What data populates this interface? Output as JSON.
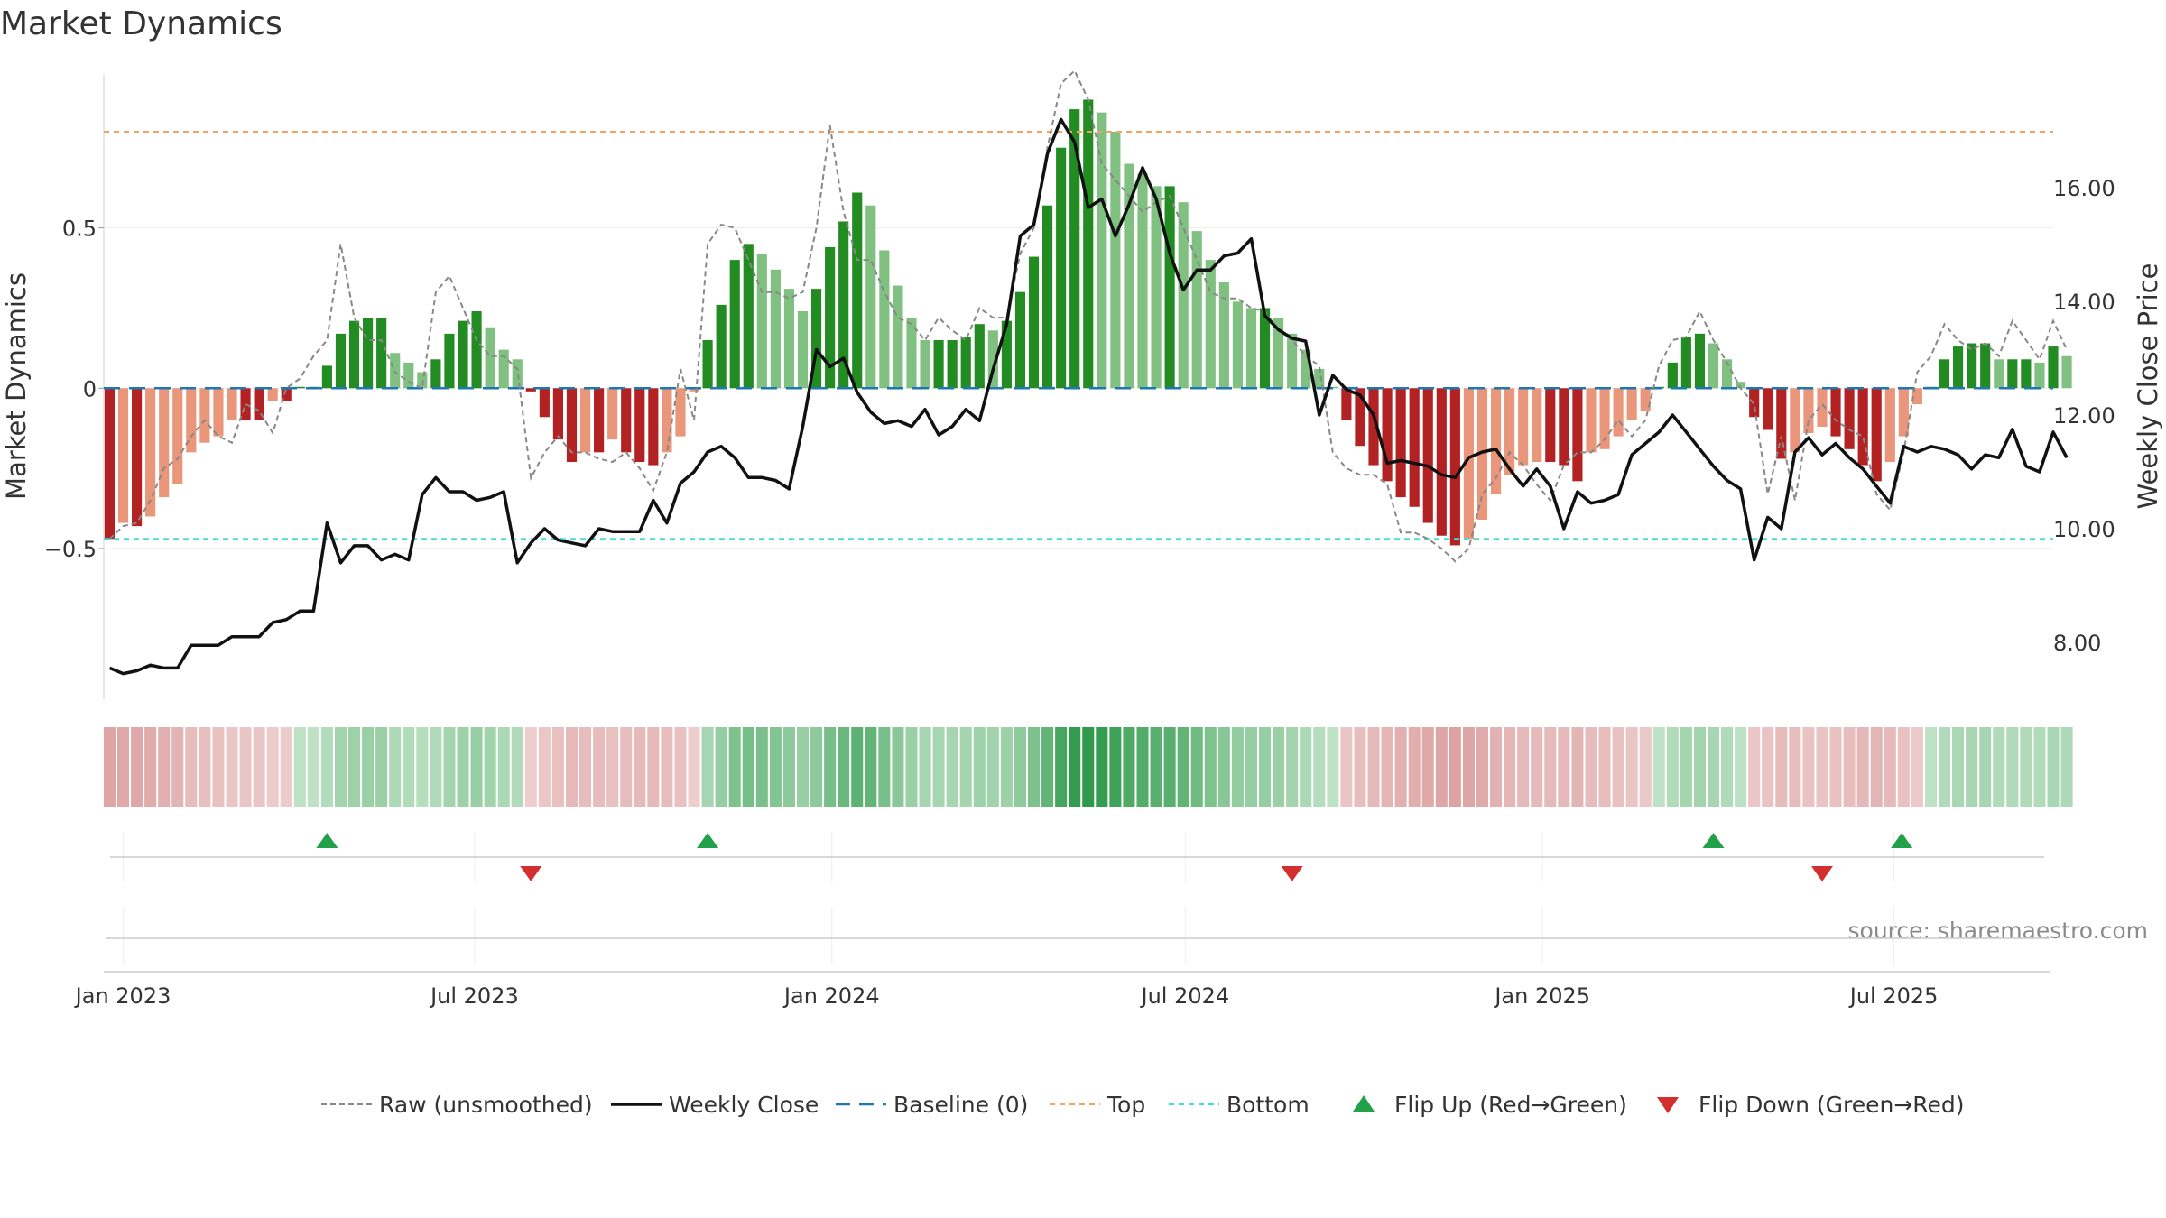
{
  "chart_data": {
    "type": "bar",
    "title": "Market Dynamics",
    "ylabel": "Market Dynamics",
    "ylabel_right": "Weekly Close Price",
    "ylim": [
      -0.97,
      0.98
    ],
    "ylim_right": [
      7.0,
      18.0
    ],
    "y_ticks": [
      -0.5,
      0,
      0.5
    ],
    "y_tick_labels": [
      "−0.5",
      "0",
      "0.5"
    ],
    "y_right_ticks": [
      8,
      10,
      12,
      14,
      16
    ],
    "y_right_tick_labels": [
      "8.00",
      "10.00",
      "12.00",
      "14.00",
      "16.00"
    ],
    "x_range": [
      "2022-12-22",
      "2025-09-21"
    ],
    "x_ticks": [
      {
        "date": "2023-01-01",
        "label": "Jan 2023"
      },
      {
        "date": "2023-07-01",
        "label": "Jul 2023"
      },
      {
        "date": "2024-01-01",
        "label": "Jan 2024"
      },
      {
        "date": "2024-07-01",
        "label": "Jul 2024"
      },
      {
        "date": "2025-01-01",
        "label": "Jan 2025"
      },
      {
        "date": "2025-07-01",
        "label": "Jul 2025"
      }
    ],
    "start_date": "2022-12-25",
    "interval_days": 7,
    "top_level": 0.8,
    "bottom_level": -0.47,
    "baseline": 0,
    "colors": {
      "strong_up": "#228b22",
      "weak_up": "#80c080",
      "strong_down": "#b22222",
      "weak_down": "#e9967a",
      "close": "#111111",
      "raw": "#888888",
      "baseline": "#1f77b4",
      "top": "#f4a460",
      "bottom": "#40e0d0",
      "flip_up": "#22a04a",
      "flip_down": "#d32f2f"
    },
    "series": [
      {
        "name": "Market Dynamics",
        "values": [
          -0.47,
          -0.42,
          -0.43,
          -0.4,
          -0.34,
          -0.3,
          -0.2,
          -0.17,
          -0.15,
          -0.1,
          -0.1,
          -0.1,
          -0.04,
          -0.04,
          0,
          0,
          0.07,
          0.17,
          0.21,
          0.22,
          0.22,
          0.11,
          0.08,
          0.05,
          0.09,
          0.17,
          0.21,
          0.24,
          0.19,
          0.12,
          0.09,
          -0.01,
          -0.09,
          -0.16,
          -0.23,
          -0.2,
          -0.2,
          -0.16,
          -0.2,
          -0.23,
          -0.24,
          -0.2,
          -0.15,
          -0.01,
          0.15,
          0.26,
          0.4,
          0.45,
          0.42,
          0.37,
          0.31,
          0.24,
          0.31,
          0.44,
          0.52,
          0.61,
          0.57,
          0.43,
          0.32,
          0.22,
          0.15,
          0.15,
          0.15,
          0.16,
          0.2,
          0.18,
          0.21,
          0.3,
          0.41,
          0.57,
          0.75,
          0.87,
          0.9,
          0.86,
          0.8,
          0.7,
          0.67,
          0.63,
          0.63,
          0.58,
          0.49,
          0.4,
          0.33,
          0.27,
          0.25,
          0.25,
          0.22,
          0.17,
          0.12,
          0.06,
          0,
          -0.1,
          -0.18,
          -0.24,
          -0.29,
          -0.34,
          -0.37,
          -0.42,
          -0.46,
          -0.49,
          -0.47,
          -0.41,
          -0.33,
          -0.27,
          -0.24,
          -0.23,
          -0.23,
          -0.24,
          -0.29,
          -0.2,
          -0.19,
          -0.15,
          -0.1,
          -0.07,
          0,
          0.08,
          0.16,
          0.17,
          0.14,
          0.09,
          0.02,
          -0.09,
          -0.13,
          -0.22,
          -0.2,
          -0.14,
          -0.12,
          -0.15,
          -0.19,
          -0.24,
          -0.29,
          -0.23,
          -0.15,
          -0.05,
          0,
          0.09,
          0.13,
          0.14,
          0.14,
          0.09,
          0.09,
          0.09,
          0.08,
          0.13,
          0.1
        ]
      },
      {
        "name": "Raw (unsmoothed)",
        "values": [
          -0.47,
          -0.43,
          -0.42,
          -0.35,
          -0.25,
          -0.22,
          -0.15,
          -0.1,
          -0.15,
          -0.17,
          -0.05,
          -0.07,
          -0.14,
          0,
          0.03,
          0.1,
          0.15,
          0.45,
          0.22,
          0.15,
          0.15,
          0.05,
          0.02,
          0,
          0.3,
          0.35,
          0.25,
          0.15,
          0.1,
          0.1,
          0.06,
          -0.28,
          -0.2,
          -0.15,
          -0.2,
          -0.2,
          -0.22,
          -0.23,
          -0.2,
          -0.25,
          -0.32,
          -0.2,
          0.06,
          -0.1,
          0.45,
          0.51,
          0.5,
          0.4,
          0.3,
          0.3,
          0.28,
          0.3,
          0.5,
          0.82,
          0.55,
          0.4,
          0.4,
          0.3,
          0.22,
          0.2,
          0.15,
          0.22,
          0.18,
          0.15,
          0.25,
          0.22,
          0.22,
          0.42,
          0.5,
          0.75,
          0.95,
          0.99,
          0.9,
          0.7,
          0.65,
          0.6,
          0.55,
          0.58,
          0.6,
          0.5,
          0.4,
          0.3,
          0.28,
          0.28,
          0.25,
          0.24,
          0.18,
          0.15,
          0.1,
          0.07,
          -0.2,
          -0.25,
          -0.27,
          -0.27,
          -0.3,
          -0.45,
          -0.45,
          -0.47,
          -0.5,
          -0.54,
          -0.5,
          -0.33,
          -0.28,
          -0.2,
          -0.24,
          -0.3,
          -0.35,
          -0.24,
          -0.2,
          -0.2,
          -0.16,
          -0.1,
          -0.15,
          -0.1,
          0.07,
          0.15,
          0.16,
          0.24,
          0.15,
          0.08,
          0,
          -0.05,
          -0.33,
          -0.15,
          -0.35,
          -0.1,
          -0.05,
          -0.1,
          -0.13,
          -0.15,
          -0.33,
          -0.38,
          -0.2,
          0.05,
          0.1,
          0.2,
          0.15,
          0.12,
          0.14,
          0.1,
          0.21,
          0.15,
          0.09,
          0.21,
          0.12
        ]
      },
      {
        "name": "Weekly Close",
        "values": [
          7.55,
          7.45,
          7.5,
          7.6,
          7.55,
          7.55,
          7.95,
          7.95,
          7.95,
          8.1,
          8.1,
          8.1,
          8.35,
          8.4,
          8.55,
          8.55,
          10.1,
          9.4,
          9.7,
          9.7,
          9.45,
          9.55,
          9.45,
          10.6,
          10.9,
          10.65,
          10.65,
          10.5,
          10.55,
          10.65,
          9.4,
          9.75,
          10.0,
          9.8,
          9.75,
          9.7,
          10.0,
          9.95,
          9.95,
          9.95,
          10.5,
          10.1,
          10.8,
          11.0,
          11.35,
          11.45,
          11.25,
          10.9,
          10.9,
          10.85,
          10.7,
          11.8,
          13.15,
          12.85,
          13.0,
          12.4,
          12.05,
          11.85,
          11.9,
          11.8,
          12.1,
          11.65,
          11.8,
          12.1,
          11.9,
          12.8,
          13.6,
          15.15,
          15.35,
          16.6,
          17.2,
          16.8,
          15.65,
          15.8,
          15.15,
          15.7,
          16.35,
          15.8,
          14.85,
          14.2,
          14.55,
          14.55,
          14.8,
          14.85,
          15.1,
          13.75,
          13.5,
          13.35,
          13.3,
          12.0,
          12.7,
          12.45,
          12.35,
          12.0,
          11.15,
          11.2,
          11.15,
          11.1,
          10.95,
          10.9,
          11.25,
          11.35,
          11.4,
          11.05,
          10.75,
          11.05,
          10.75,
          10.0,
          10.65,
          10.45,
          10.5,
          10.6,
          11.3,
          11.5,
          11.7,
          12.0,
          11.7,
          11.4,
          11.1,
          10.85,
          10.7,
          9.45,
          10.2,
          10.0,
          11.35,
          11.6,
          11.3,
          11.5,
          11.25,
          11.05,
          10.75,
          10.45,
          11.45,
          11.35,
          11.45,
          11.4,
          11.3,
          11.05,
          11.3,
          11.25,
          11.75,
          11.1,
          11.0,
          11.7,
          11.25
        ]
      }
    ],
    "flips": [
      {
        "date": "2023-04-16",
        "dir": "up"
      },
      {
        "date": "2023-07-30",
        "dir": "down"
      },
      {
        "date": "2023-10-29",
        "dir": "up"
      },
      {
        "date": "2024-08-25",
        "dir": "down"
      },
      {
        "date": "2025-03-30",
        "dir": "up"
      },
      {
        "date": "2025-05-25",
        "dir": "down"
      },
      {
        "date": "2025-07-05",
        "dir": "up"
      }
    ],
    "legend": [
      {
        "key": "raw",
        "label": "Raw (unsmoothed)"
      },
      {
        "key": "close",
        "label": "Weekly Close"
      },
      {
        "key": "baseline",
        "label": "Baseline (0)"
      },
      {
        "key": "top",
        "label": "Top"
      },
      {
        "key": "bottom",
        "label": "Bottom"
      },
      {
        "key": "flip_up",
        "label": "Flip Up (Red→Green)"
      },
      {
        "key": "flip_down",
        "label": "Flip Down (Green→Red)"
      }
    ],
    "legend_position": "bottom",
    "source": "source: sharemaestro.com"
  }
}
